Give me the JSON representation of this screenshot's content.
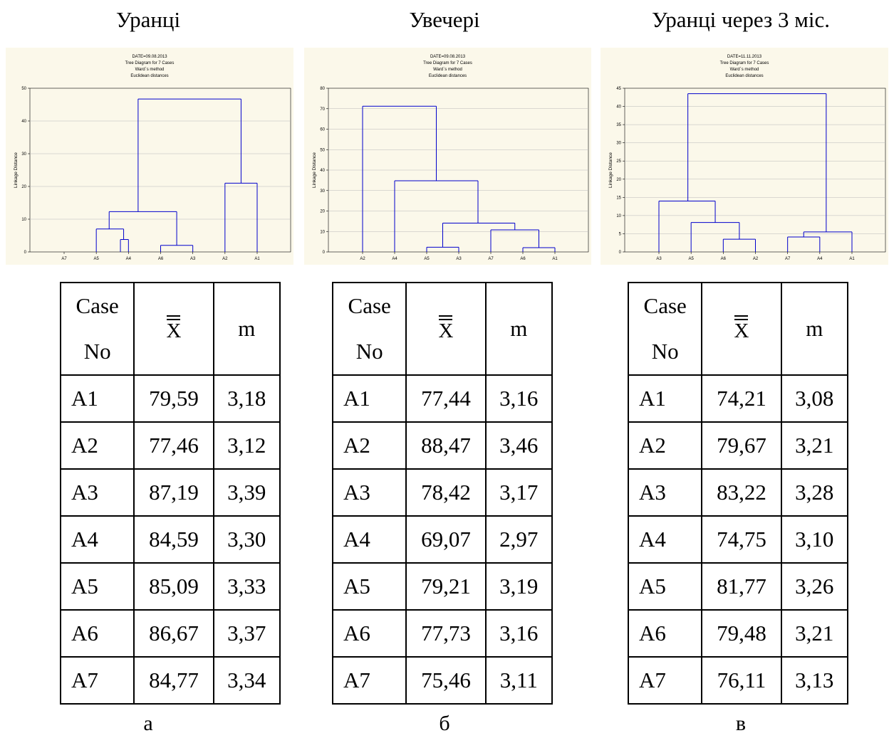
{
  "panels": [
    {
      "heading": "Уранці",
      "letter": "а",
      "table": {
        "header": {
          "case_line1": "Case",
          "case_line2": "No",
          "mean": "X",
          "m": "m"
        },
        "rows": [
          {
            "case": "A1",
            "mean": "79,59",
            "m": "3,18"
          },
          {
            "case": "A2",
            "mean": "77,46",
            "m": "3,12"
          },
          {
            "case": "A3",
            "mean": "87,19",
            "m": "3,39"
          },
          {
            "case": "A4",
            "mean": "84,59",
            "m": "3,30"
          },
          {
            "case": "A5",
            "mean": "85,09",
            "m": "3,33"
          },
          {
            "case": "A6",
            "mean": "86,67",
            "m": "3,37"
          },
          {
            "case": "A7",
            "mean": "84,77",
            "m": "3,34"
          }
        ]
      }
    },
    {
      "heading": "Увечері",
      "letter": "б",
      "table": {
        "header": {
          "case_line1": "Case",
          "case_line2": "No",
          "mean": "X",
          "m": "m"
        },
        "rows": [
          {
            "case": "A1",
            "mean": "77,44",
            "m": "3,16"
          },
          {
            "case": "A2",
            "mean": "88,47",
            "m": "3,46"
          },
          {
            "case": "A3",
            "mean": "78,42",
            "m": "3,17"
          },
          {
            "case": "A4",
            "mean": "69,07",
            "m": "2,97"
          },
          {
            "case": "A5",
            "mean": "79,21",
            "m": "3,19"
          },
          {
            "case": "A6",
            "mean": "77,73",
            "m": "3,16"
          },
          {
            "case": "A7",
            "mean": "75,46",
            "m": "3,11"
          }
        ]
      }
    },
    {
      "heading": "Уранці через 3 міс.",
      "letter": "в",
      "table": {
        "header": {
          "case_line1": "Case",
          "case_line2": "No",
          "mean": "X",
          "m": "m"
        },
        "rows": [
          {
            "case": "A1",
            "mean": "74,21",
            "m": "3,08"
          },
          {
            "case": "A2",
            "mean": "79,67",
            "m": "3,21"
          },
          {
            "case": "A3",
            "mean": "83,22",
            "m": "3,28"
          },
          {
            "case": "A4",
            "mean": "74,75",
            "m": "3,10"
          },
          {
            "case": "A5",
            "mean": "81,77",
            "m": "3,26"
          },
          {
            "case": "A6",
            "mean": "79,48",
            "m": "3,21"
          },
          {
            "case": "A7",
            "mean": "76,11",
            "m": "3,13"
          }
        ]
      }
    }
  ],
  "chart_data": [
    {
      "type": "dendrogram",
      "title_lines": [
        "DATE=09.08.2013",
        "Tree Diagram for 7 Cases",
        "Ward`s method",
        "Euclidean distances"
      ],
      "ylabel": "Linkage Distance",
      "ylim": [
        0,
        50
      ],
      "yticks": [
        0,
        10,
        20,
        30,
        40,
        50
      ],
      "leaves": [
        "A7",
        "A5",
        "A4",
        "A6",
        "A3",
        "A2",
        "A1"
      ],
      "grid": true,
      "line_color": "#0000cc",
      "merges": [
        {
          "left": 0,
          "right": 1,
          "height": 7
        },
        {
          "left": 1,
          "right": 2,
          "height": 3.8
        },
        {
          "left": 3,
          "right": 4,
          "height": 2
        },
        {
          "left": 5,
          "right": 6,
          "height": 21
        },
        {
          "left": 0.5,
          "right": 3.5,
          "height": 12.3
        },
        {
          "left": 2,
          "right": 5.5,
          "height": 46.7
        }
      ],
      "segments": [
        [
          1,
          0,
          1,
          7
        ],
        [
          1.75,
          0,
          1.75,
          3.8
        ],
        [
          2,
          0,
          2,
          3.8
        ],
        [
          1.75,
          3.8,
          2,
          3.8
        ],
        [
          1.85,
          3.8,
          1.85,
          7
        ],
        [
          1,
          7,
          1.85,
          7
        ],
        [
          3,
          0,
          3,
          2
        ],
        [
          4,
          0,
          4,
          2
        ],
        [
          3,
          2,
          4,
          2
        ],
        [
          5,
          0,
          5,
          21
        ],
        [
          6,
          0,
          6,
          21
        ],
        [
          5,
          21,
          6,
          21
        ],
        [
          1.4,
          7,
          1.4,
          12.3
        ],
        [
          3.5,
          2,
          3.5,
          12.3
        ],
        [
          1.4,
          12.3,
          3.5,
          12.3
        ],
        [
          2.3,
          12.3,
          2.3,
          46.7
        ],
        [
          5.5,
          21,
          5.5,
          46.7
        ],
        [
          2.3,
          46.7,
          5.5,
          46.7
        ]
      ]
    },
    {
      "type": "dendrogram",
      "title_lines": [
        "DATE=09.08.2013",
        "Tree Diagram for 7 Cases",
        "Ward`s method",
        "Euclidean distances"
      ],
      "ylabel": "Linkage Distance",
      "ylim": [
        0,
        80
      ],
      "yticks": [
        0,
        10,
        20,
        30,
        40,
        50,
        60,
        70,
        80
      ],
      "leaves": [
        "A2",
        "A4",
        "A5",
        "A3",
        "A7",
        "A6",
        "A1"
      ],
      "grid": true,
      "line_color": "#0000cc",
      "segments": [
        [
          2,
          0,
          2,
          2.3
        ],
        [
          3,
          0,
          3,
          2.3
        ],
        [
          2,
          2.3,
          3,
          2.3
        ],
        [
          5,
          0,
          5,
          2.1
        ],
        [
          6,
          0,
          6,
          2.1
        ],
        [
          5,
          2.1,
          6,
          2.1
        ],
        [
          4,
          0,
          4,
          10.8
        ],
        [
          5.5,
          2.1,
          5.5,
          10.8
        ],
        [
          4,
          10.8,
          5.5,
          10.8
        ],
        [
          2.5,
          2.3,
          2.5,
          14.1
        ],
        [
          4.75,
          10.8,
          4.75,
          14.1
        ],
        [
          2.5,
          14.1,
          4.75,
          14.1
        ],
        [
          1,
          0,
          1,
          34.8
        ],
        [
          3.6,
          14.1,
          3.6,
          34.8
        ],
        [
          1,
          34.8,
          3.6,
          34.8
        ],
        [
          0,
          0,
          0,
          71.2
        ],
        [
          2.3,
          34.8,
          2.3,
          71.2
        ],
        [
          0,
          71.2,
          2.3,
          71.2
        ]
      ]
    },
    {
      "type": "dendrogram",
      "title_lines": [
        "DATE=11.11.2013",
        "Tree Diagram for 7 Cases",
        "Ward`s method",
        "Euclidean distances"
      ],
      "ylabel": "Linkage Distance",
      "ylim": [
        0,
        45
      ],
      "yticks": [
        0,
        5,
        10,
        15,
        20,
        25,
        30,
        35,
        40,
        45
      ],
      "leaves": [
        "A3",
        "A5",
        "A6",
        "A2",
        "A7",
        "A4",
        "A1"
      ],
      "grid": true,
      "line_color": "#0000cc",
      "segments": [
        [
          2,
          0,
          2,
          3.5
        ],
        [
          3,
          0,
          3,
          3.5
        ],
        [
          2,
          3.5,
          3,
          3.5
        ],
        [
          1,
          0,
          1,
          8.1
        ],
        [
          2.5,
          3.5,
          2.5,
          8.1
        ],
        [
          1,
          8.1,
          2.5,
          8.1
        ],
        [
          0,
          0,
          0,
          14
        ],
        [
          1.75,
          8.1,
          1.75,
          14
        ],
        [
          0,
          14,
          1.75,
          14
        ],
        [
          4,
          0,
          4,
          4.1
        ],
        [
          5,
          0,
          5,
          4.1
        ],
        [
          4,
          4.1,
          5,
          4.1
        ],
        [
          4.5,
          4.1,
          4.5,
          5.5
        ],
        [
          6,
          0,
          6,
          5.5
        ],
        [
          4.5,
          5.5,
          6,
          5.5
        ],
        [
          0.9,
          14,
          0.9,
          43.5
        ],
        [
          5.2,
          5.5,
          5.2,
          43.5
        ],
        [
          0.9,
          43.5,
          5.2,
          43.5
        ]
      ]
    }
  ]
}
